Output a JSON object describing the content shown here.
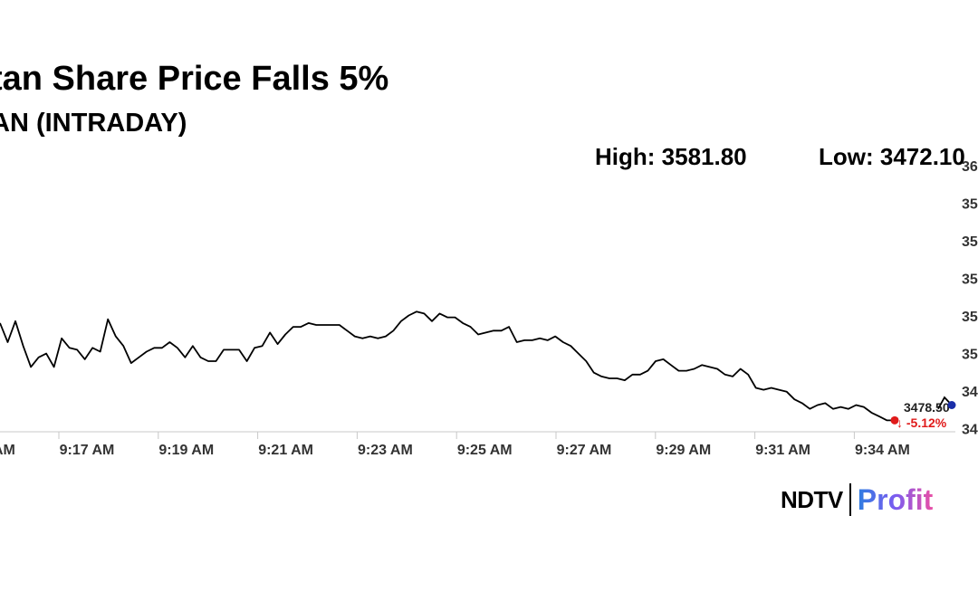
{
  "title": "tan Share Price Falls 5%",
  "subtitle": "AN (INTRADAY)",
  "stats": {
    "high": "High: 3581.80",
    "low": "Low: 3472.10"
  },
  "logo": {
    "ndtv": "NDTV",
    "profit": "Profit"
  },
  "colors": {
    "line": "#000000",
    "last_point": "#e01b1b",
    "current_point": "#1a2ea8",
    "change": "#e01b1b"
  },
  "chart_data": {
    "type": "line",
    "title": "",
    "xlabel": "",
    "ylabel": "",
    "grid": false,
    "ylim": [
      3460,
      3600
    ],
    "x_ticks": [
      "AM",
      "9:17 AM",
      "9:19 AM",
      "9:21 AM",
      "9:23 AM",
      "9:25 AM",
      "9:27 AM",
      "9:29 AM",
      "9:31 AM",
      "9:34 AM"
    ],
    "y_ticks": [
      "36",
      "35",
      "35",
      "35",
      "35",
      "35",
      "34",
      "34"
    ],
    "last_label": "3478.50",
    "change_label": "↓ -5.12%",
    "series": [
      {
        "values": [
          3517,
          3507,
          3518,
          3505,
          3494,
          3499,
          3501,
          3494,
          3509,
          3504,
          3503,
          3498,
          3504,
          3502,
          3519,
          3510,
          3505,
          3496,
          3499,
          3502,
          3504,
          3504,
          3507,
          3504,
          3499,
          3505,
          3499,
          3497,
          3497,
          3503,
          3503,
          3503,
          3497,
          3504,
          3505,
          3512,
          3506,
          3511,
          3515,
          3515,
          3517,
          3516,
          3516,
          3516,
          3516,
          3513,
          3510,
          3509,
          3510,
          3509,
          3510,
          3513,
          3518,
          3521,
          3523,
          3522,
          3518,
          3522,
          3520,
          3520,
          3517,
          3515,
          3511,
          3512,
          3513,
          3513,
          3515,
          3507,
          3508,
          3508,
          3509,
          3508,
          3510,
          3507,
          3505,
          3501,
          3497,
          3491,
          3489,
          3488,
          3488,
          3487,
          3490,
          3490,
          3492,
          3497,
          3498,
          3495,
          3492,
          3492,
          3493,
          3495,
          3494,
          3493,
          3490,
          3489,
          3493,
          3490,
          3483,
          3482,
          3483,
          3482,
          3481,
          3477,
          3475,
          3472,
          3474,
          3475,
          3472,
          3473,
          3472,
          3474,
          3473,
          3470,
          3468,
          3466,
          3478.5
        ]
      }
    ]
  }
}
